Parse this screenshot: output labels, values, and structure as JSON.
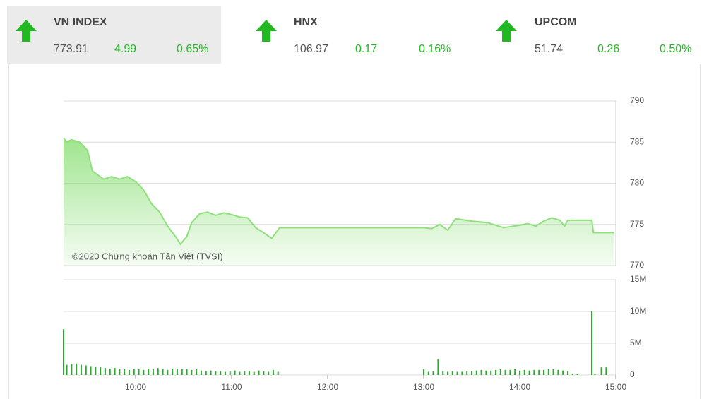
{
  "indices": [
    {
      "name": "VN INDEX",
      "value": "773.91",
      "change": "4.99",
      "percent": "0.65%"
    },
    {
      "name": "HNX",
      "value": "106.97",
      "change": "0.17",
      "percent": "0.16%"
    },
    {
      "name": "UPCOM",
      "value": "51.74",
      "change": "0.26",
      "percent": "0.50%"
    }
  ],
  "chart_data": [
    {
      "type": "line",
      "annotation": "©2020 Chứng khoán Tân Việt (TVSI)",
      "color": "#8ee07a",
      "grid": true,
      "xlim": [
        555,
        900
      ],
      "ylim": [
        770,
        790
      ],
      "yticks": [
        770,
        775,
        780,
        785,
        790
      ],
      "x": [
        555,
        557,
        560,
        565,
        570,
        573,
        580,
        585,
        590,
        595,
        600,
        605,
        610,
        615,
        620,
        625,
        628,
        632,
        635,
        640,
        645,
        650,
        655,
        660,
        665,
        670,
        675,
        680,
        685,
        690,
        780,
        785,
        790,
        795,
        800,
        810,
        820,
        830,
        840,
        845,
        850,
        855,
        860,
        865,
        868,
        870,
        885,
        886,
        899
      ],
      "values": [
        785.5,
        785,
        785.3,
        785,
        784,
        781.5,
        780.5,
        780.8,
        780.5,
        780.8,
        780.2,
        779.2,
        777.5,
        776.5,
        774.8,
        773.5,
        772.6,
        773.5,
        775.2,
        776.3,
        776.5,
        776.1,
        776.4,
        776.2,
        775.9,
        775.8,
        774.6,
        774.0,
        773.3,
        774.6,
        774.6,
        774.5,
        775.0,
        774.3,
        775.7,
        775.4,
        775.2,
        774.6,
        774.9,
        775.1,
        774.8,
        775.4,
        775.8,
        775.5,
        774.8,
        775.5,
        775.5,
        774.0,
        774.0
      ]
    },
    {
      "type": "bar",
      "color": "#2fa82f",
      "grid": true,
      "xlim": [
        555,
        900
      ],
      "ylim": [
        0,
        15
      ],
      "xticks": [
        {
          "value": 600,
          "label": "10:00"
        },
        {
          "value": 660,
          "label": "11:00"
        },
        {
          "value": 720,
          "label": "12:00"
        },
        {
          "value": 780,
          "label": "13:00"
        },
        {
          "value": 840,
          "label": "14:00"
        },
        {
          "value": 900,
          "label": "15:00"
        }
      ],
      "yticks": [
        0,
        {
          "value": 5,
          "label": "5M"
        },
        {
          "value": 10,
          "label": "10M"
        },
        {
          "value": 15,
          "label": "15M"
        }
      ],
      "x": [
        555,
        557,
        560,
        563,
        566,
        569,
        572,
        575,
        578,
        581,
        584,
        587,
        590,
        593,
        596,
        599,
        602,
        605,
        608,
        611,
        614,
        617,
        620,
        623,
        626,
        629,
        632,
        635,
        638,
        641,
        644,
        647,
        650,
        653,
        656,
        659,
        662,
        665,
        668,
        671,
        674,
        677,
        680,
        683,
        686,
        689,
        780,
        783,
        786,
        789,
        792,
        795,
        798,
        801,
        804,
        807,
        810,
        813,
        816,
        819,
        822,
        825,
        828,
        831,
        834,
        837,
        840,
        843,
        846,
        849,
        852,
        855,
        858,
        861,
        864,
        867,
        870,
        873,
        876,
        885,
        887,
        891,
        894
      ],
      "values": [
        7.2,
        1.6,
        1.7,
        1.8,
        1.6,
        1.5,
        1.4,
        1.3,
        1.2,
        1.1,
        1.0,
        1.1,
        0.9,
        0.9,
        0.8,
        1.0,
        0.9,
        0.8,
        1.0,
        0.9,
        1.1,
        0.9,
        0.8,
        1.0,
        1.0,
        0.9,
        1.0,
        0.8,
        0.9,
        0.7,
        0.6,
        0.7,
        0.6,
        0.6,
        0.5,
        0.6,
        0.7,
        0.5,
        0.6,
        0.6,
        0.5,
        0.7,
        0.6,
        0.5,
        0.8,
        0.5,
        0.9,
        0.5,
        0.6,
        2.5,
        0.6,
        0.5,
        0.6,
        0.5,
        0.5,
        0.6,
        0.6,
        0.7,
        0.8,
        0.7,
        0.7,
        0.8,
        0.9,
        0.8,
        0.8,
        0.9,
        0.7,
        0.8,
        0.7,
        0.8,
        0.8,
        0.8,
        0.9,
        0.9,
        0.8,
        0.7,
        0.6,
        0.2,
        0.2,
        10.0,
        0.2,
        1.2,
        1.2
      ]
    }
  ]
}
